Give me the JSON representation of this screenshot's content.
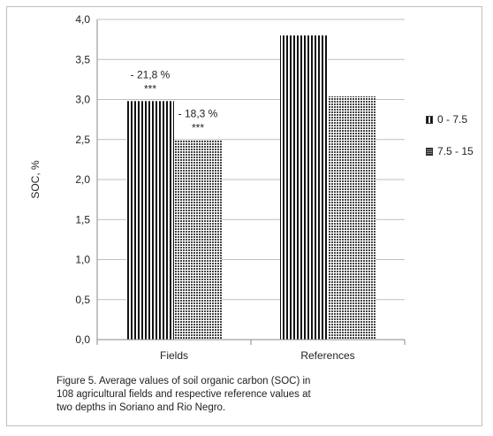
{
  "chart_data": {
    "type": "bar",
    "categories": [
      "Fields",
      "References"
    ],
    "series": [
      {
        "name": "0 - 7.5",
        "values": [
          2.98,
          3.8
        ],
        "pattern": "vertical-stripes"
      },
      {
        "name": "7.5 - 15",
        "values": [
          2.49,
          3.04
        ],
        "pattern": "dots"
      }
    ],
    "ylabel": "SOC, %",
    "xlabel": "",
    "ylim": [
      0,
      4
    ],
    "yticks": [
      "0,0",
      "0,5",
      "1,0",
      "1,5",
      "2,0",
      "2,5",
      "3,0",
      "3,5",
      "4,0"
    ],
    "grid": true,
    "legend_position": "right",
    "annotations": [
      {
        "category": "Fields",
        "series": "0 - 7.5",
        "percent": "- 21,8 %",
        "stars": "***"
      },
      {
        "category": "Fields",
        "series": "7.5 - 15",
        "percent": "- 18,3 %",
        "stars": "***"
      }
    ],
    "colors": {
      "stripe": "#111111",
      "dots": "#444444",
      "grid": "#bfbfbf",
      "axis": "#888888"
    }
  },
  "caption": "Figure 5. Average values of soil organic carbon (SOC) in 108 agricultural fields and respective reference values at two depths in Soriano and Rio Negro."
}
